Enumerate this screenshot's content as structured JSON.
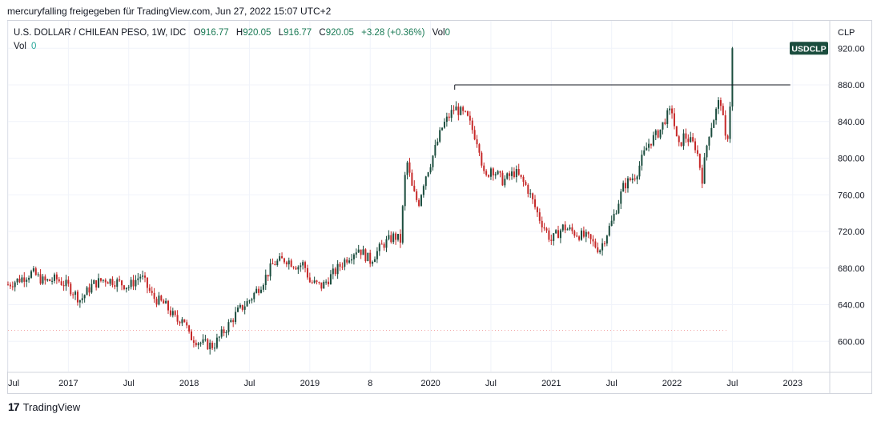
{
  "caption": "mercuryfalling freigegeben für TradingView.com, Jun 27, 2022 15:07 UTC+2",
  "legend": {
    "symbol": "U.S. DOLLAR / CHILEAN PESO, 1W, IDC",
    "open_label": "O",
    "open": "916.77",
    "high_label": "H",
    "high": "920.05",
    "low_label": "L",
    "low": "916.77",
    "close_label": "C",
    "close": "920.05",
    "change": "+3.28 (+0.36%)",
    "vol_label": "Vol",
    "vol_value": "0",
    "vol2_label": "Vol",
    "vol2_value": "0"
  },
  "footer": {
    "logo": "17",
    "brand": "TradingView"
  },
  "chart_data": {
    "type": "candlestick",
    "symbol_tag": "USDCLP",
    "currency": "CLP",
    "colors": {
      "up": "#1b4d3e",
      "down": "#c62828",
      "tag_bg": "#1b4d3e",
      "resistance": "#131722",
      "ref_dots": "#f2a3a3"
    },
    "y_ticks": [
      "600.00",
      "640.00",
      "680.00",
      "720.00",
      "760.00",
      "800.00",
      "840.00",
      "880.00",
      "920.00"
    ],
    "ylim": [
      567,
      950
    ],
    "x_ticks": [
      {
        "label": "Jul",
        "t": 2016.5
      },
      {
        "label": "2017",
        "t": 2017.0
      },
      {
        "label": "Jul",
        "t": 2017.5
      },
      {
        "label": "2018",
        "t": 2018.0
      },
      {
        "label": "Jul",
        "t": 2018.5
      },
      {
        "label": "2019",
        "t": 2019.0
      },
      {
        "label": "8",
        "t": 2019.5
      },
      {
        "label": "2020",
        "t": 2020.0
      },
      {
        "label": "Jul",
        "t": 2020.5
      },
      {
        "label": "2021",
        "t": 2021.0
      },
      {
        "label": "Jul",
        "t": 2021.5
      },
      {
        "label": "2022",
        "t": 2022.0
      },
      {
        "label": "Jul",
        "t": 2022.5
      },
      {
        "label": "2023",
        "t": 2023.0
      }
    ],
    "xlim": [
      2016.5,
      2023.3
    ],
    "resistance": {
      "value": 880,
      "from": 2020.2,
      "to": 2022.98
    },
    "reference_level": {
      "value": 612,
      "from": 2016.5,
      "to": 2022.45
    },
    "last_close": 920.05,
    "series": [
      [
        2016.5,
        662
      ],
      [
        2016.6,
        668
      ],
      [
        2016.7,
        675
      ],
      [
        2016.8,
        665
      ],
      [
        2016.9,
        668
      ],
      [
        2017.0,
        660
      ],
      [
        2017.1,
        645
      ],
      [
        2017.2,
        662
      ],
      [
        2017.3,
        668
      ],
      [
        2017.4,
        665
      ],
      [
        2017.5,
        660
      ],
      [
        2017.6,
        672
      ],
      [
        2017.7,
        648
      ],
      [
        2017.8,
        640
      ],
      [
        2017.9,
        622
      ],
      [
        2017.95,
        628
      ],
      [
        2018.0,
        606
      ],
      [
        2018.1,
        598
      ],
      [
        2018.2,
        595
      ],
      [
        2018.3,
        613
      ],
      [
        2018.4,
        632
      ],
      [
        2018.5,
        645
      ],
      [
        2018.6,
        663
      ],
      [
        2018.7,
        685
      ],
      [
        2018.8,
        690
      ],
      [
        2018.9,
        682
      ],
      [
        2018.95,
        685
      ],
      [
        2019.0,
        665
      ],
      [
        2019.1,
        660
      ],
      [
        2019.2,
        675
      ],
      [
        2019.3,
        690
      ],
      [
        2019.4,
        702
      ],
      [
        2019.5,
        688
      ],
      [
        2019.6,
        705
      ],
      [
        2019.7,
        715
      ],
      [
        2019.75,
        710
      ],
      [
        2019.8,
        800
      ],
      [
        2019.85,
        765
      ],
      [
        2019.9,
        750
      ],
      [
        2019.95,
        778
      ],
      [
        2020.0,
        795
      ],
      [
        2020.1,
        835
      ],
      [
        2020.2,
        855
      ],
      [
        2020.3,
        845
      ],
      [
        2020.4,
        815
      ],
      [
        2020.45,
        775
      ],
      [
        2020.5,
        790
      ],
      [
        2020.6,
        775
      ],
      [
        2020.7,
        785
      ],
      [
        2020.8,
        768
      ],
      [
        2020.9,
        735
      ],
      [
        2021.0,
        710
      ],
      [
        2021.1,
        725
      ],
      [
        2021.2,
        718
      ],
      [
        2021.3,
        713
      ],
      [
        2021.4,
        700
      ],
      [
        2021.5,
        730
      ],
      [
        2021.6,
        770
      ],
      [
        2021.7,
        782
      ],
      [
        2021.8,
        815
      ],
      [
        2021.9,
        830
      ],
      [
        2021.95,
        845
      ],
      [
        2022.0,
        852
      ],
      [
        2022.05,
        810
      ],
      [
        2022.1,
        825
      ],
      [
        2022.2,
        812
      ],
      [
        2022.25,
        778
      ],
      [
        2022.3,
        825
      ],
      [
        2022.4,
        866
      ],
      [
        2022.45,
        812
      ],
      [
        2022.47,
        835
      ],
      [
        2022.49,
        880
      ],
      [
        2022.5,
        916.77
      ],
      [
        2022.51,
        920.05
      ]
    ]
  }
}
